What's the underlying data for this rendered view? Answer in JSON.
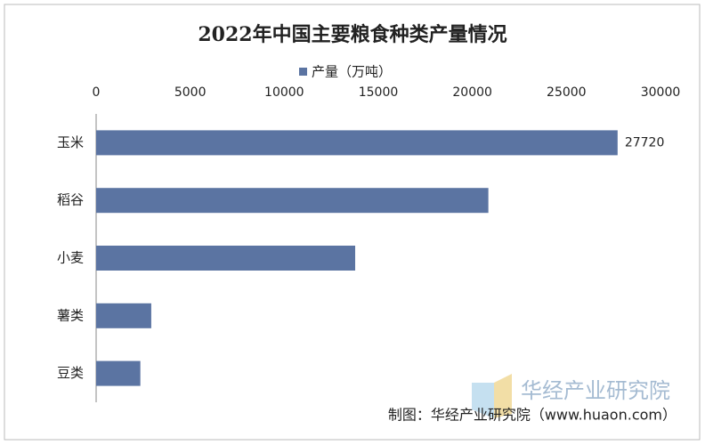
{
  "chart_data": {
    "type": "hbar",
    "title": "2022年中国主要粮食种类产量情况",
    "categories": [
      "玉米",
      "稻谷",
      "小麦",
      "薯类",
      "豆类"
    ],
    "series": [
      {
        "name": "产量（万吨）",
        "color": "#5b74a2",
        "values": [
          27720,
          20850,
          13770,
          2930,
          2350
        ],
        "value_labels": [
          "27720",
          null,
          null,
          null,
          null
        ]
      }
    ],
    "xlim": [
      0,
      30000
    ],
    "xticks": [
      0,
      5000,
      10000,
      15000,
      20000,
      25000,
      30000
    ],
    "grid": false,
    "legend": "top",
    "source": "制图：华经产业研究院（www.huaon.com）",
    "watermark": "华经产业研究院"
  }
}
